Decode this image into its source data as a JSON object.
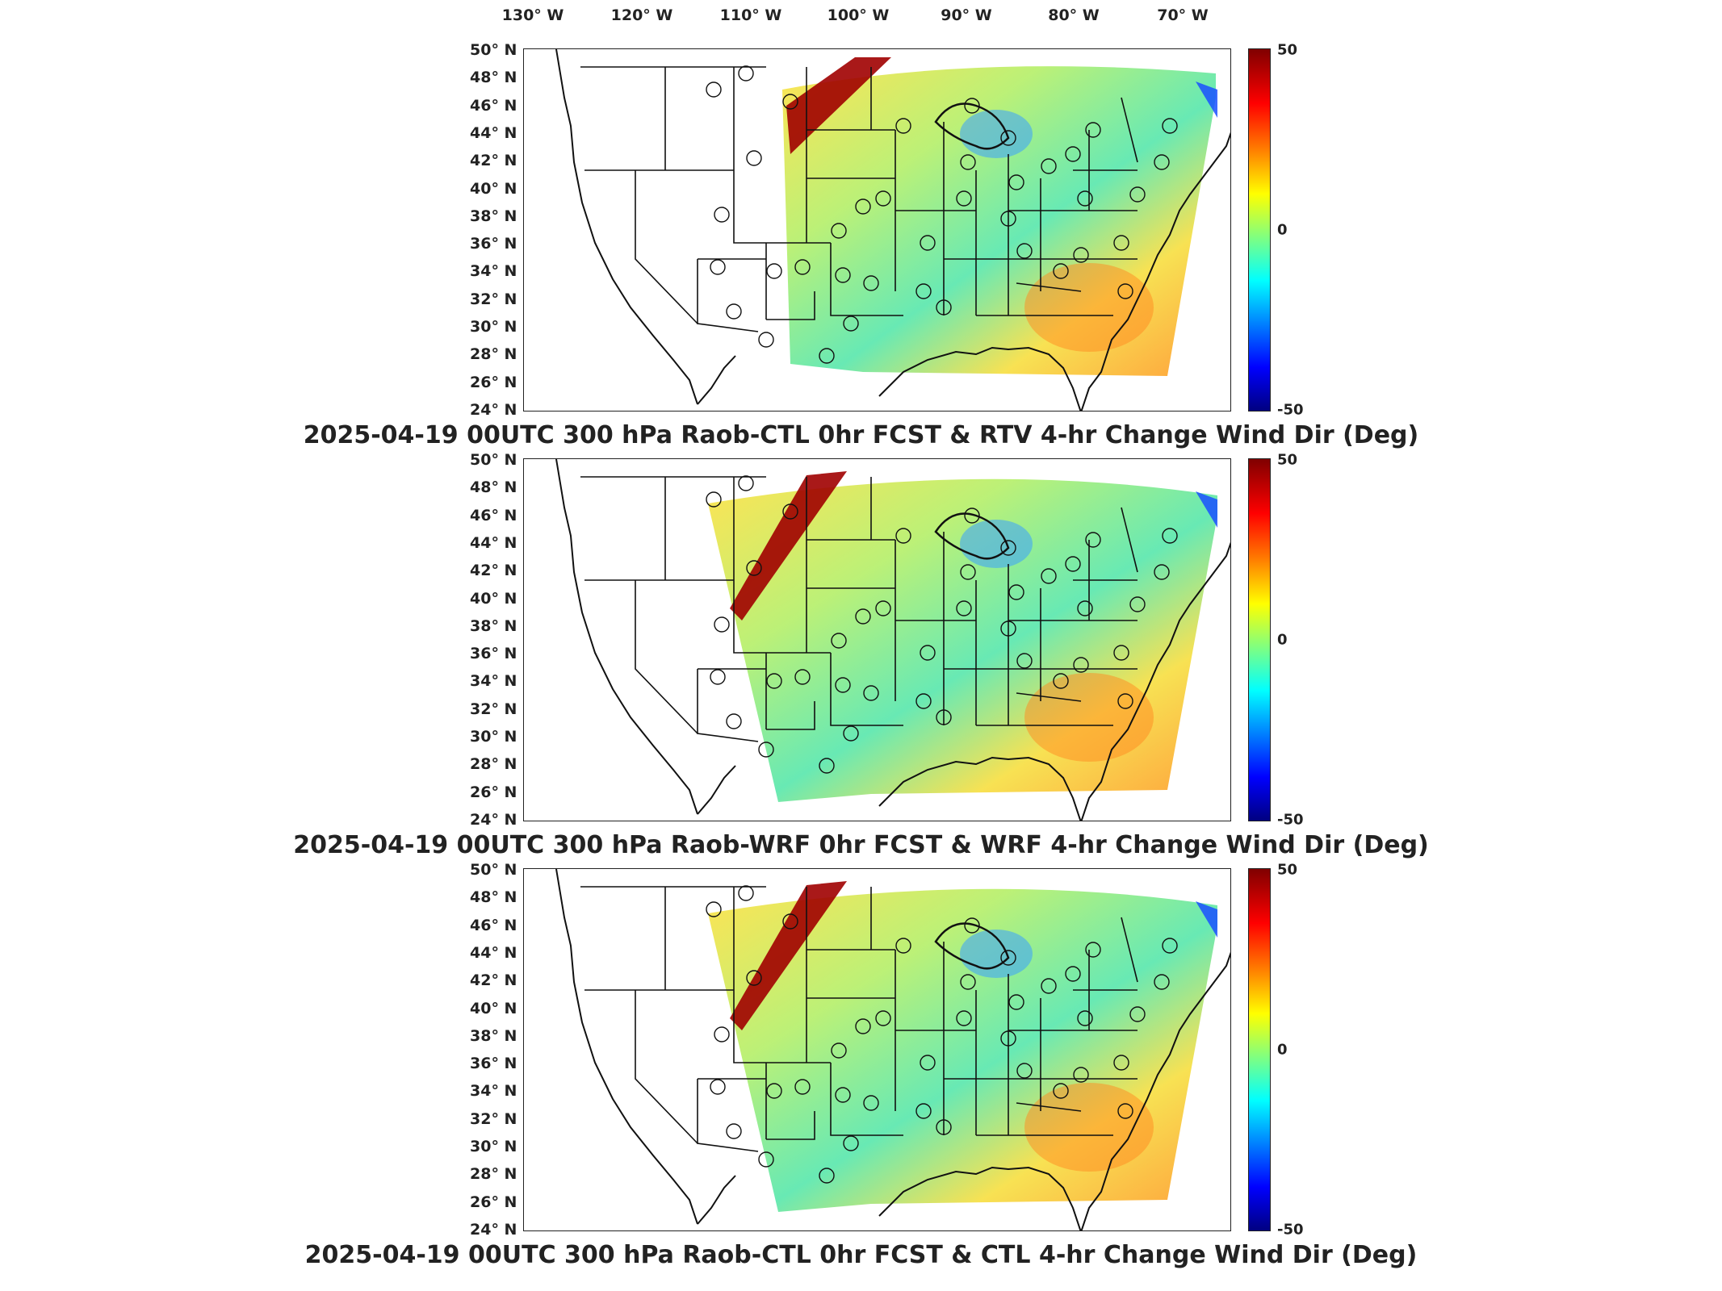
{
  "longitude_labels": [
    {
      "deg": "130",
      "hemi": "W"
    },
    {
      "deg": "120",
      "hemi": "W"
    },
    {
      "deg": "110",
      "hemi": "W"
    },
    {
      "deg": "100",
      "hemi": "W"
    },
    {
      "deg": "90",
      "hemi": "W"
    },
    {
      "deg": "80",
      "hemi": "W"
    },
    {
      "deg": "70",
      "hemi": "W"
    }
  ],
  "latitude_labels": [
    {
      "deg": "50",
      "hemi": "N"
    },
    {
      "deg": "48",
      "hemi": "N"
    },
    {
      "deg": "46",
      "hemi": "N"
    },
    {
      "deg": "44",
      "hemi": "N"
    },
    {
      "deg": "42",
      "hemi": "N"
    },
    {
      "deg": "40",
      "hemi": "N"
    },
    {
      "deg": "38",
      "hemi": "N"
    },
    {
      "deg": "36",
      "hemi": "N"
    },
    {
      "deg": "34",
      "hemi": "N"
    },
    {
      "deg": "32",
      "hemi": "N"
    },
    {
      "deg": "30",
      "hemi": "N"
    },
    {
      "deg": "28",
      "hemi": "N"
    },
    {
      "deg": "26",
      "hemi": "N"
    },
    {
      "deg": "24",
      "hemi": "N"
    }
  ],
  "colorbar": {
    "max": "50",
    "mid": "0",
    "min": "-50"
  },
  "panels": [
    {
      "title": "2025-04-19 00UTC 300 hPa Raob-CTL 0hr FCST & RTV 4-hr Change Wind Dir (Deg)"
    },
    {
      "title": "2025-04-19 00UTC 300 hPa Raob-WRF 0hr FCST & WRF 4-hr Change Wind Dir (Deg)"
    },
    {
      "title": "2025-04-19 00UTC 300 hPa Raob-CTL 0hr FCST & CTL 4-hr Change Wind Dir (Deg)"
    }
  ],
  "colors": {
    "positive_max": "#800000",
    "zero": "#80ff80",
    "negative_max": "#000080"
  }
}
